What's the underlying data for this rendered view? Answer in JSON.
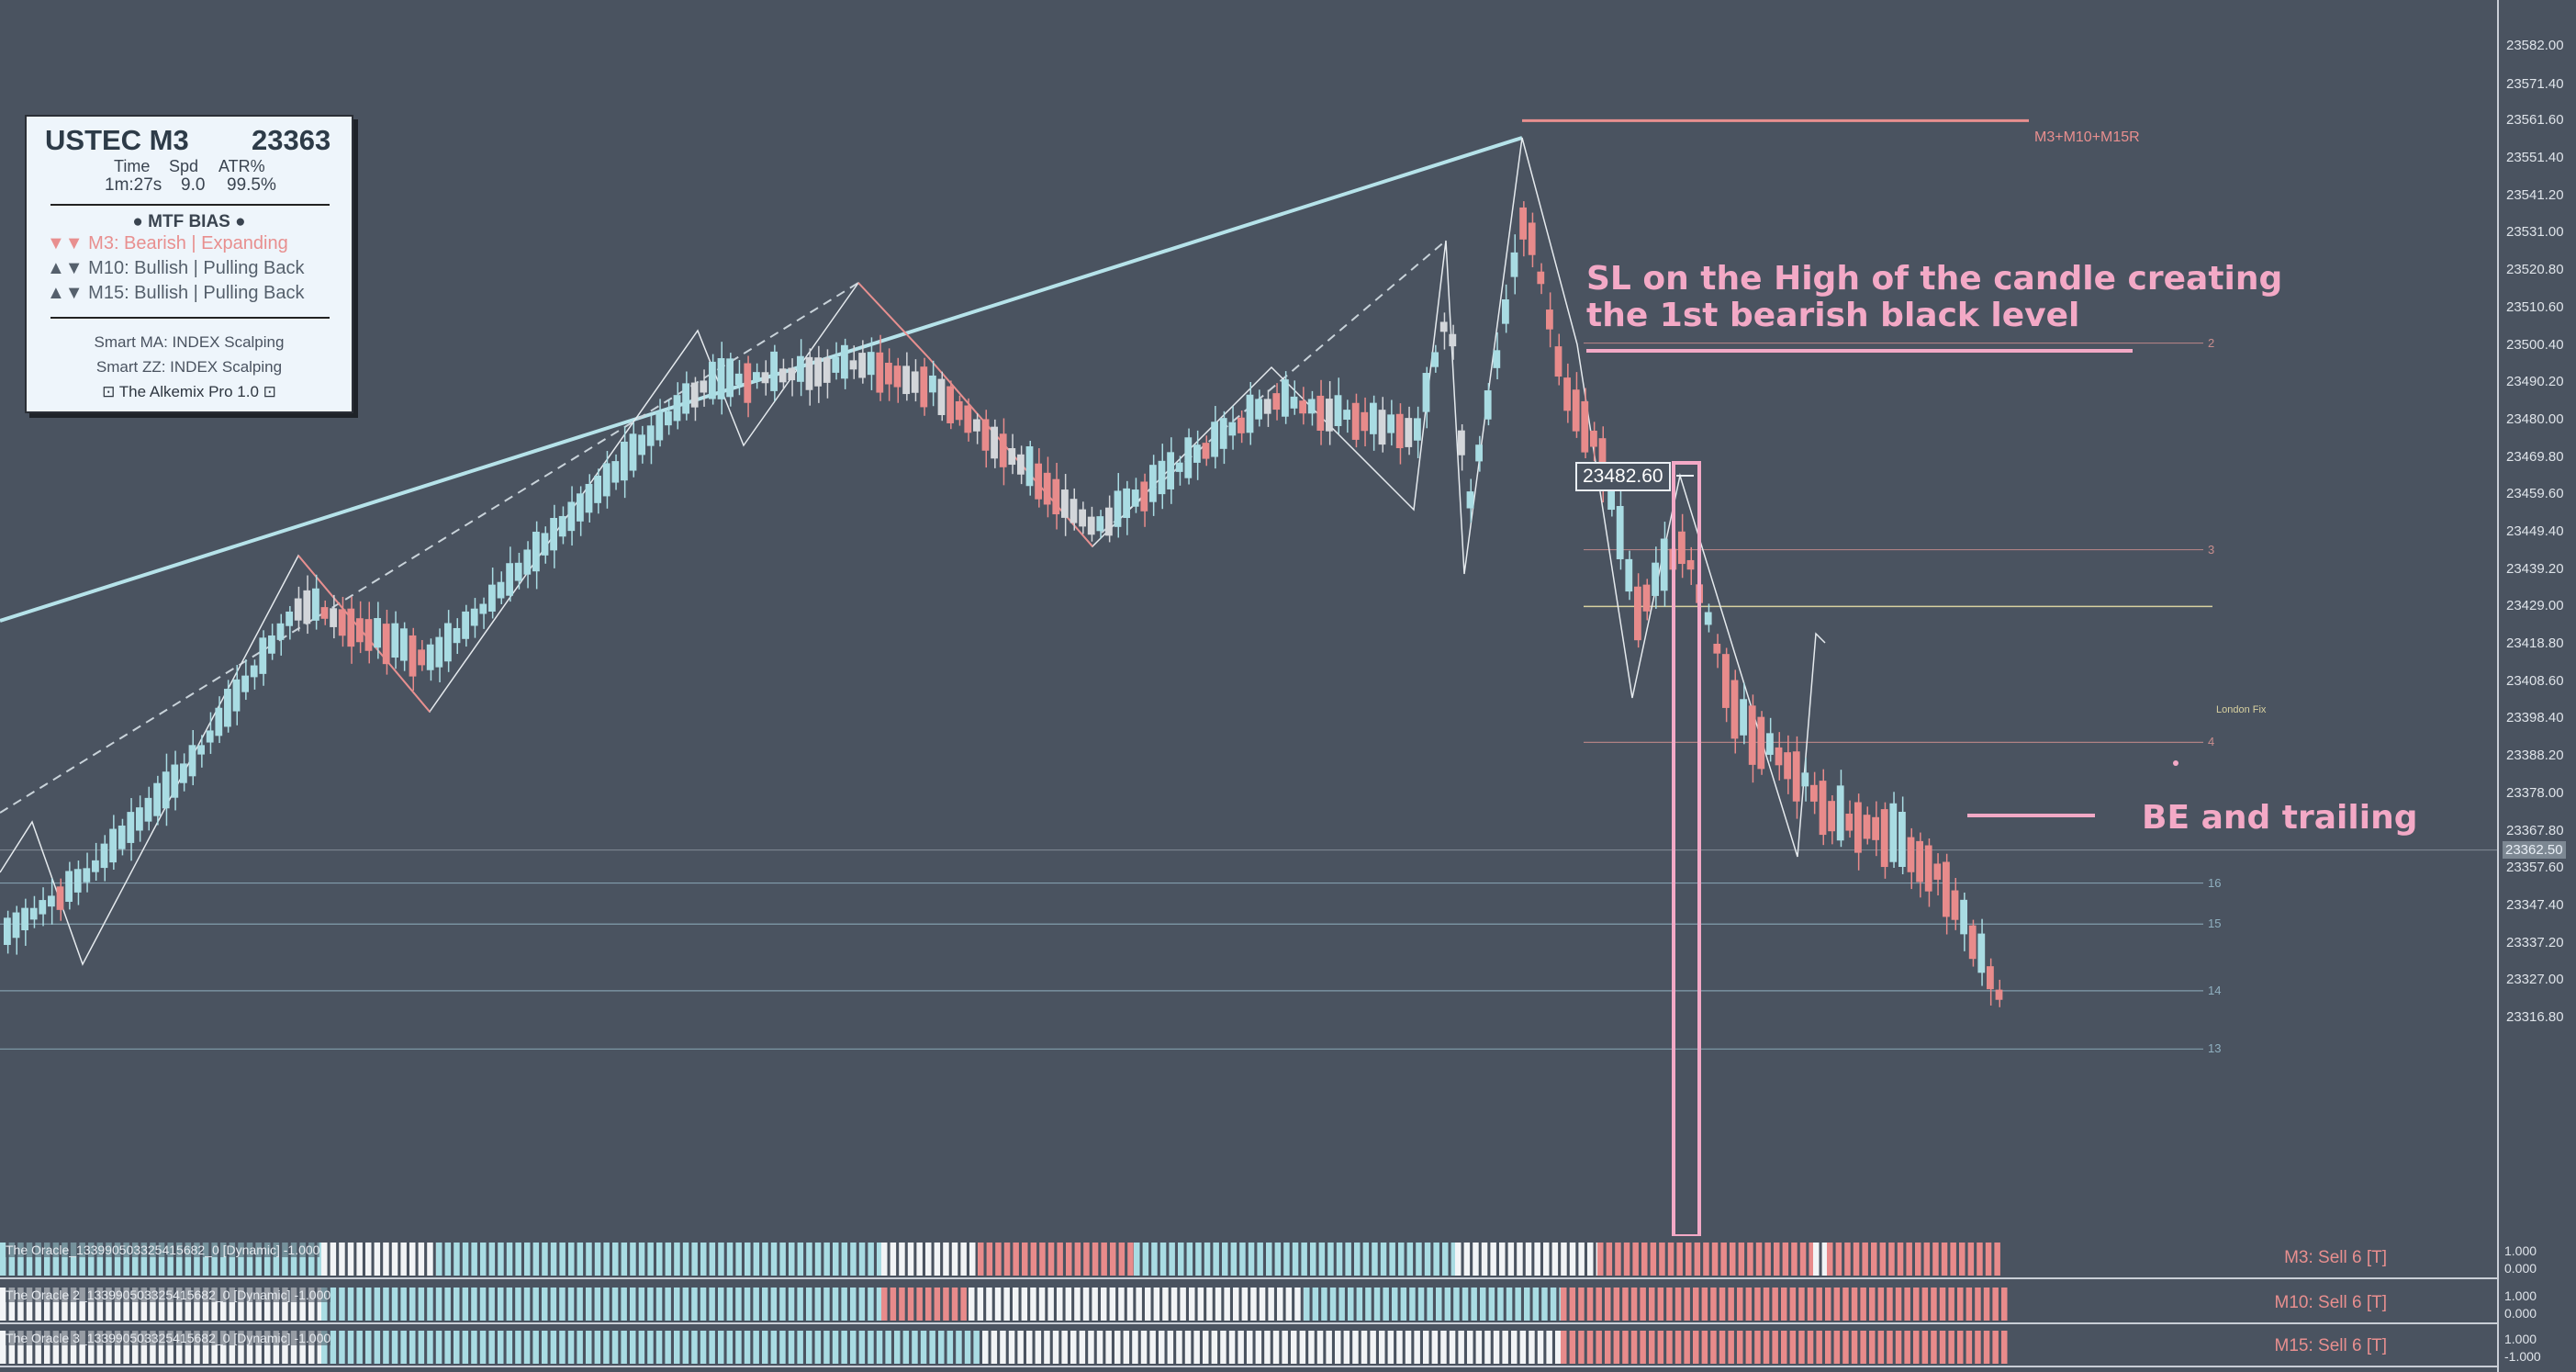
{
  "panel": {
    "symbol": "USTEC M3",
    "price": "23363",
    "headers": {
      "time": "Time",
      "spread": "Spd",
      "atr": "ATR%"
    },
    "values": {
      "time": "1m:27s",
      "spread": "9.0",
      "atr": "99.5%"
    },
    "bias_title": "● MTF BIAS ●",
    "bias": [
      {
        "arrows": "▼▼",
        "text": "M3: Bearish | Expanding",
        "color": "#e88f8f"
      },
      {
        "arrows": "▲▼",
        "text": "M10: Bullish | Pulling Back",
        "color": "#55606c"
      },
      {
        "arrows": "▲▼",
        "text": "M15: Bullish | Pulling Back",
        "color": "#55606c"
      }
    ],
    "smart_ma": "Smart MA: INDEX Scalping",
    "smart_zz": "Smart ZZ: INDEX Scalping",
    "footer": "⊡ The Alkemix Pro 1.0 ⊡"
  },
  "annotations": {
    "sl_line1": "SL on the High of the candle creating",
    "sl_line2": "the 1st bearish black level",
    "be": "BE and trailing",
    "m_level": "M3+M10+M15R",
    "london_fix": "London Fix",
    "price_box": "23482.60"
  },
  "price_axis": {
    "labels": [
      "23582.00",
      "23571.40",
      "23561.60",
      "23551.40",
      "23541.20",
      "23531.00",
      "23520.80",
      "23510.60",
      "23500.40",
      "23490.20",
      "23480.00",
      "23469.80",
      "23459.60",
      "23449.40",
      "23439.20",
      "23429.00",
      "23418.80",
      "23408.60",
      "23398.40",
      "23388.20",
      "23378.00",
      "23367.80",
      "23357.60",
      "23347.40",
      "23337.20",
      "23327.00",
      "23316.80"
    ],
    "current": "23362.50",
    "max": 23582.0,
    "min": 23316.8
  },
  "levels": [
    {
      "label": "2",
      "price": 23500.9,
      "color": "#c98d8d"
    },
    {
      "label": "3",
      "price": 23444.5,
      "color": "#c98d8d"
    },
    {
      "label": "4",
      "price": 23391.9,
      "color": "#c98d8d"
    },
    {
      "label": "16",
      "price": 23353.5,
      "color": "#8fb0c0"
    },
    {
      "label": "15",
      "price": 23342.3,
      "color": "#8fb0c0"
    },
    {
      "label": "14",
      "price": 23324.1,
      "color": "#8fb0c0"
    },
    {
      "label": "13",
      "price": 23308.2,
      "color": "#8fb0c0"
    }
  ],
  "indicators": [
    {
      "label": "The Oracle_133990503325415682_0 [Dynamic] -1.000",
      "right": "M3: Sell 6 [T]",
      "scale_top": "1.000",
      "scale_bottom": "0.000"
    },
    {
      "label": "The Oracle 2_133990503325415682_0 [Dynamic] -1.000",
      "right": "M10: Sell 6 [T]",
      "scale_top": "1.000",
      "scale_bottom": "0.000"
    },
    {
      "label": "The Oracle 3_133990503325415682_0 [Dynamic] -1.000",
      "right": "M15: Sell 6 [T]",
      "scale_top": "1.000",
      "scale_bottom": "-1.000"
    }
  ],
  "colors": {
    "bull": "#a9dce3",
    "bear": "#e88b8b",
    "neutral": "#d3d6da",
    "trend": "#b6e3ea",
    "annotation": "#f3a9c6"
  }
}
